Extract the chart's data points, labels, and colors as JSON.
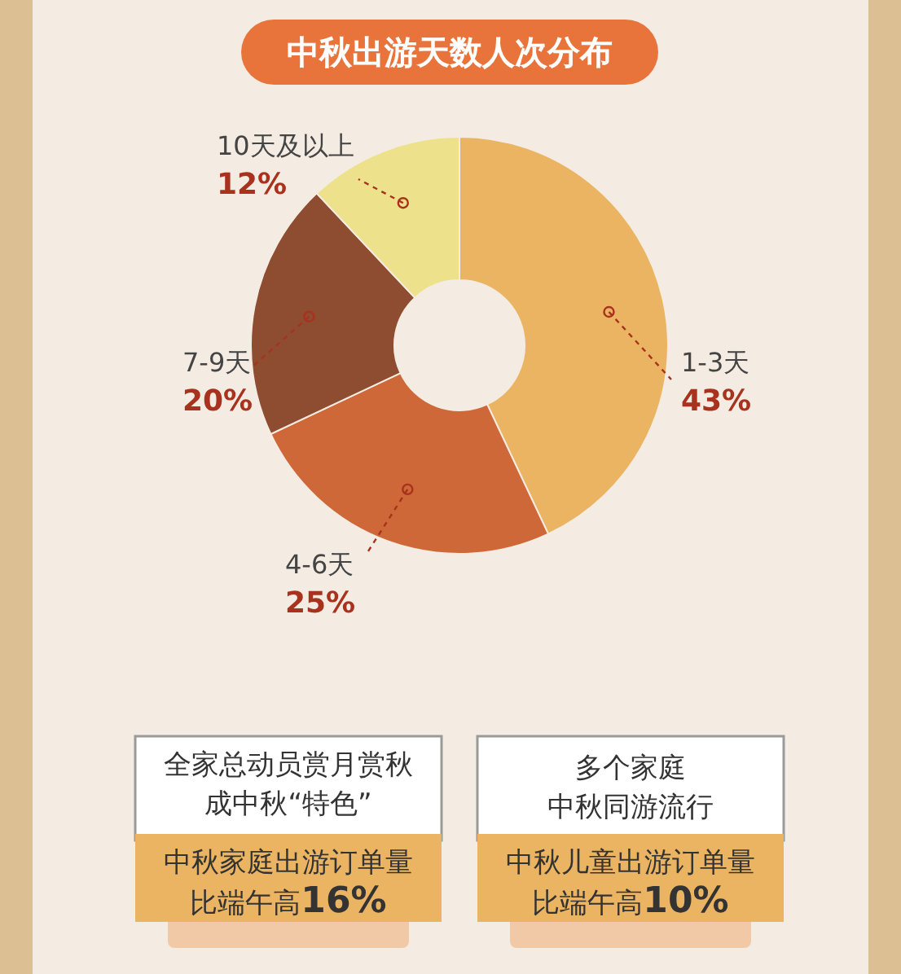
{
  "chart_data": {
    "type": "donut",
    "title": "中秋出游天数人次分布",
    "categories": [
      "1-3天",
      "4-6天",
      "7-9天",
      "10天及以上"
    ],
    "values": [
      43,
      25,
      20,
      12
    ],
    "value_labels": [
      "43%",
      "25%",
      "20%",
      "12%"
    ],
    "colors": [
      "#ebb462",
      "#cf6838",
      "#8e4c30",
      "#ede18c"
    ],
    "annotations": [
      "全家总动员赏月赏秋成中秋“特色”",
      "中秋家庭出游订单量比端午高**16%**",
      "多个家庭",
      "中秋同游流行",
      "中秋儿童出游订单量比端午高**10%**"
    ]
  }
}
